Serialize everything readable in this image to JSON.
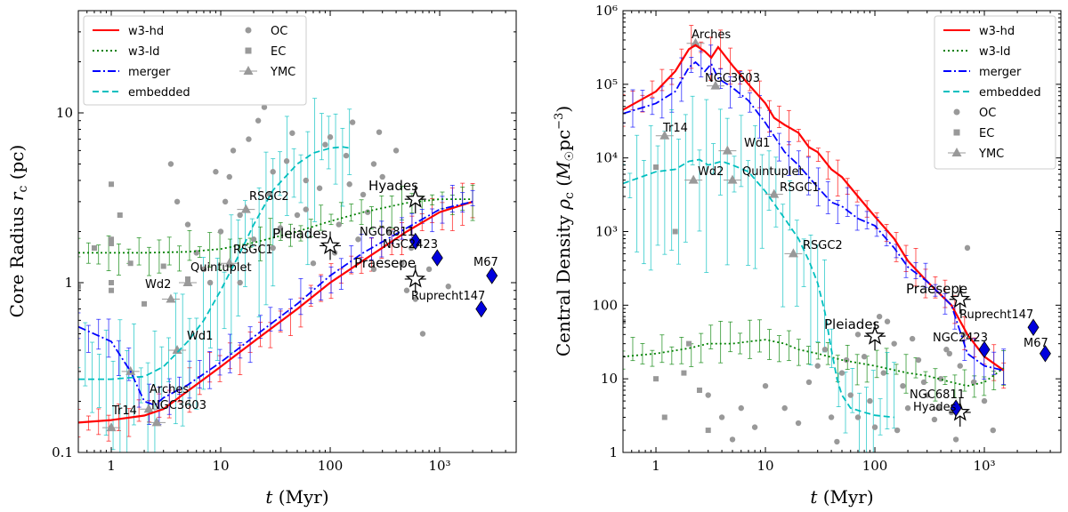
{
  "chart_data": [
    {
      "type": "line",
      "xscale": "log",
      "yscale": "log",
      "xlabel": "t (Myr)",
      "ylabel": "Core Radius r_c (pc)",
      "xlim": [
        0.5,
        5000
      ],
      "ylim": [
        0.1,
        40
      ],
      "x_ticks": [
        {
          "v": 1,
          "label": "1"
        },
        {
          "v": 10,
          "label": "10"
        },
        {
          "v": 100,
          "label": "100"
        },
        {
          "v": 1000,
          "label": "10³"
        }
      ],
      "y_ticks": [
        {
          "v": 0.1,
          "label": "0.1"
        },
        {
          "v": 1,
          "label": "1"
        },
        {
          "v": 10,
          "label": "10"
        }
      ],
      "legend": [
        {
          "name": "w3-hd",
          "kind": "line",
          "color": "#ff0000",
          "dash": "solid"
        },
        {
          "name": "w3-ld",
          "kind": "line",
          "color": "#008000",
          "dash": "dotted"
        },
        {
          "name": "merger",
          "kind": "line",
          "color": "#0000ff",
          "dash": "dashdot"
        },
        {
          "name": "embedded",
          "kind": "line",
          "color": "#00bfbf",
          "dash": "dashed"
        },
        {
          "name": "OC",
          "kind": "marker",
          "marker": "circle",
          "color": "#999999"
        },
        {
          "name": "EC",
          "kind": "marker",
          "marker": "square",
          "color": "#999999"
        },
        {
          "name": "YMC",
          "kind": "marker",
          "marker": "triangle",
          "color": "#999999"
        }
      ],
      "series": [
        {
          "name": "w3-hd",
          "color": "#ff0000",
          "dash": "solid",
          "x": [
            0.5,
            1,
            2,
            3,
            5,
            10,
            20,
            50,
            100,
            200,
            500,
            1000,
            2000
          ],
          "y": [
            0.15,
            0.155,
            0.165,
            0.18,
            0.23,
            0.32,
            0.45,
            0.7,
            1.0,
            1.35,
            2.0,
            2.6,
            3.0
          ]
        },
        {
          "name": "w3-ld",
          "color": "#008000",
          "dash": "dotted",
          "x": [
            0.5,
            1,
            2,
            5,
            10,
            20,
            50,
            100,
            200,
            500,
            1000,
            2000
          ],
          "y": [
            1.5,
            1.5,
            1.5,
            1.52,
            1.58,
            1.72,
            2.0,
            2.3,
            2.6,
            2.95,
            3.1,
            3.1
          ]
        },
        {
          "name": "merger",
          "color": "#0000ff",
          "dash": "dashdot",
          "x": [
            0.5,
            1,
            1.5,
            2,
            2.5,
            3,
            5,
            10,
            20,
            50,
            100,
            200,
            500,
            1000,
            2000
          ],
          "y": [
            0.55,
            0.45,
            0.3,
            0.2,
            0.19,
            0.21,
            0.25,
            0.34,
            0.48,
            0.75,
            1.1,
            1.5,
            2.1,
            2.7,
            3.0
          ]
        },
        {
          "name": "embedded",
          "color": "#00bfbf",
          "dash": "dashed",
          "x": [
            0.5,
            1,
            2,
            3,
            5,
            7,
            10,
            15,
            20,
            30,
            50,
            70,
            100,
            130,
            150
          ],
          "y": [
            0.27,
            0.27,
            0.28,
            0.32,
            0.45,
            0.6,
            0.9,
            1.5,
            2.2,
            3.5,
            5.0,
            5.8,
            6.2,
            6.3,
            6.2
          ]
        }
      ],
      "points_OC": [
        [
          3.5,
          5
        ],
        [
          4,
          3
        ],
        [
          5,
          2.2
        ],
        [
          6,
          1.5
        ],
        [
          7,
          1.2
        ],
        [
          8,
          1.0
        ],
        [
          9,
          4.5
        ],
        [
          10,
          2.0
        ],
        [
          11,
          3.0
        ],
        [
          12,
          4.2
        ],
        [
          13,
          6.0
        ],
        [
          15,
          2.5
        ],
        [
          18,
          7.0
        ],
        [
          20,
          1.8
        ],
        [
          22,
          9.0
        ],
        [
          25,
          10.8
        ],
        [
          28,
          3.3
        ],
        [
          30,
          1.6
        ],
        [
          35,
          2.1
        ],
        [
          40,
          5.2
        ],
        [
          45,
          7.6
        ],
        [
          50,
          2.5
        ],
        [
          60,
          4.0
        ],
        [
          70,
          1.3
        ],
        [
          80,
          3.6
        ],
        [
          90,
          6.5
        ],
        [
          100,
          7.2
        ],
        [
          110,
          1.5
        ],
        [
          120,
          2.2
        ],
        [
          140,
          5.6
        ],
        [
          160,
          8.8
        ],
        [
          180,
          1.8
        ],
        [
          200,
          3.3
        ],
        [
          220,
          2.6
        ],
        [
          250,
          1.2
        ],
        [
          280,
          7.7
        ],
        [
          300,
          4.2
        ],
        [
          350,
          2.0
        ],
        [
          400,
          6.0
        ],
        [
          450,
          1.3
        ],
        [
          500,
          0.9
        ],
        [
          550,
          1.6
        ],
        [
          600,
          0.8
        ],
        [
          700,
          0.5
        ],
        [
          800,
          1.2
        ],
        [
          1000,
          1.4
        ],
        [
          1200,
          0.95
        ],
        [
          15,
          1.0
        ],
        [
          30,
          4.5
        ],
        [
          60,
          2.7
        ],
        [
          150,
          3.8
        ],
        [
          250,
          5.0
        ]
      ],
      "points_EC": [
        [
          0.5,
          0.95
        ],
        [
          1,
          3.8
        ],
        [
          1,
          1.8
        ],
        [
          1,
          1.7
        ],
        [
          1,
          1.0
        ],
        [
          1,
          0.9
        ],
        [
          1.5,
          1.3
        ],
        [
          2,
          0.75
        ],
        [
          3,
          1.25
        ],
        [
          5,
          1.05
        ],
        [
          0.7,
          1.6
        ],
        [
          1.2,
          2.5
        ]
      ],
      "points_YMC": [
        {
          "x": 1,
          "y": 0.14,
          "label": "Tr14"
        },
        {
          "x": 2.2,
          "y": 0.18,
          "label": "Arches"
        },
        {
          "x": 2.6,
          "y": 0.15,
          "label": "NGC3603"
        },
        {
          "x": 1.5,
          "y": 0.3,
          "label": ""
        },
        {
          "x": 4,
          "y": 0.4,
          "label": "Wd1"
        },
        {
          "x": 3.5,
          "y": 0.8,
          "label": "Wd2"
        },
        {
          "x": 5,
          "y": 1.0,
          "label": "Quintuplet"
        },
        {
          "x": 12,
          "y": 1.3,
          "label": "RSGC1"
        },
        {
          "x": 17,
          "y": 2.7,
          "label": "RSGC2"
        }
      ],
      "stars": [
        {
          "x": 100,
          "y": 1.65,
          "label": "Pleiades"
        },
        {
          "x": 600,
          "y": 3.1,
          "label": "Hyades"
        },
        {
          "x": 600,
          "y": 1.05,
          "label": "Praesepe"
        }
      ],
      "diamonds": [
        {
          "x": 600,
          "y": 1.75,
          "label": "NGC2423"
        },
        {
          "x": 950,
          "y": 1.4,
          "label": "NGC6811"
        },
        {
          "x": 3000,
          "y": 1.1,
          "label": "M67"
        },
        {
          "x": 2400,
          "y": 0.7,
          "label": "Ruprecht147"
        }
      ]
    },
    {
      "type": "line",
      "xscale": "log",
      "yscale": "log",
      "xlabel": "t (Myr)",
      "ylabel": "Central Density ρ_c (M☉ pc⁻³)",
      "xlim": [
        0.5,
        5000
      ],
      "ylim": [
        1,
        1000000
      ],
      "x_ticks": [
        {
          "v": 1,
          "label": "1"
        },
        {
          "v": 10,
          "label": "10"
        },
        {
          "v": 100,
          "label": "100"
        },
        {
          "v": 1000,
          "label": "10³"
        }
      ],
      "y_ticks": [
        {
          "v": 1,
          "label": "1"
        },
        {
          "v": 10,
          "label": "10"
        },
        {
          "v": 100,
          "label": "100"
        },
        {
          "v": 1000,
          "label": "10³"
        },
        {
          "v": 10000,
          "label": "10⁴"
        },
        {
          "v": 100000,
          "label": "10⁵"
        },
        {
          "v": 1000000,
          "label": "10⁶"
        }
      ],
      "legend": [
        {
          "name": "w3-hd",
          "kind": "line",
          "color": "#ff0000",
          "dash": "solid"
        },
        {
          "name": "w3-ld",
          "kind": "line",
          "color": "#008000",
          "dash": "dotted"
        },
        {
          "name": "merger",
          "kind": "line",
          "color": "#0000ff",
          "dash": "dashdot"
        },
        {
          "name": "embedded",
          "kind": "line",
          "color": "#00bfbf",
          "dash": "dashed"
        },
        {
          "name": "OC",
          "kind": "marker",
          "marker": "circle",
          "color": "#999999"
        },
        {
          "name": "EC",
          "kind": "marker",
          "marker": "square",
          "color": "#999999"
        },
        {
          "name": "YMC",
          "kind": "marker",
          "marker": "triangle",
          "color": "#999999"
        }
      ],
      "series": [
        {
          "name": "w3-hd",
          "color": "#ff0000",
          "dash": "solid",
          "x": [
            0.5,
            1,
            1.5,
            2,
            2.3,
            2.8,
            3.2,
            3.7,
            5,
            7,
            10,
            12,
            15,
            20,
            25,
            30,
            40,
            50,
            70,
            100,
            150,
            200,
            300,
            500,
            700,
            1000,
            1500
          ],
          "y": [
            45000,
            80000,
            150000,
            300000,
            340000,
            280000,
            230000,
            320000,
            180000,
            100000,
            55000,
            35000,
            28000,
            22000,
            14000,
            12000,
            7000,
            5500,
            3000,
            1600,
            800,
            400,
            210,
            100,
            40,
            20,
            13
          ]
        },
        {
          "name": "w3-ld",
          "color": "#008000",
          "dash": "dotted",
          "x": [
            0.5,
            1,
            2,
            3,
            5,
            7,
            10,
            15,
            20,
            30,
            50,
            100,
            200,
            300,
            500,
            700,
            1000,
            1500
          ],
          "y": [
            20,
            22,
            26,
            30,
            30,
            32,
            34,
            30,
            25,
            22,
            18,
            15,
            12,
            11,
            9,
            8,
            9,
            14
          ]
        },
        {
          "name": "merger",
          "color": "#0000ff",
          "dash": "dashdot",
          "x": [
            0.5,
            1,
            1.5,
            2,
            2.3,
            2.8,
            3.2,
            3.7,
            5,
            7,
            10,
            15,
            20,
            30,
            40,
            50,
            70,
            100,
            150,
            200,
            300,
            500,
            700,
            1000,
            1500
          ],
          "y": [
            40000,
            55000,
            80000,
            170000,
            200000,
            150000,
            190000,
            120000,
            90000,
            60000,
            30000,
            12000,
            8000,
            4000,
            2500,
            2200,
            1500,
            1200,
            600,
            330,
            210,
            100,
            22,
            15,
            13
          ]
        },
        {
          "name": "embedded",
          "color": "#00bfbf",
          "dash": "dashed",
          "x": [
            0.5,
            1,
            1.5,
            2,
            2.5,
            3,
            4,
            5,
            7,
            10,
            15,
            20,
            25,
            30,
            35,
            40,
            45,
            50,
            60,
            80,
            100,
            150
          ],
          "y": [
            4500,
            6500,
            7000,
            9000,
            9500,
            8000,
            9000,
            8000,
            6500,
            3500,
            1500,
            800,
            400,
            200,
            80,
            25,
            10,
            6,
            4,
            3.5,
            3.2,
            3.0
          ]
        }
      ],
      "points_OC": [
        [
          3,
          6
        ],
        [
          4,
          3
        ],
        [
          5,
          1.5
        ],
        [
          6,
          4
        ],
        [
          8,
          2.2
        ],
        [
          10,
          8
        ],
        [
          15,
          4
        ],
        [
          20,
          2.5
        ],
        [
          25,
          9
        ],
        [
          30,
          15
        ],
        [
          35,
          25
        ],
        [
          40,
          3
        ],
        [
          50,
          12
        ],
        [
          60,
          6
        ],
        [
          70,
          40
        ],
        [
          80,
          20
        ],
        [
          90,
          5
        ],
        [
          100,
          2.2
        ],
        [
          110,
          70
        ],
        [
          120,
          12
        ],
        [
          150,
          30
        ],
        [
          180,
          8
        ],
        [
          200,
          4
        ],
        [
          250,
          18
        ],
        [
          300,
          6
        ],
        [
          350,
          2.8
        ],
        [
          400,
          10
        ],
        [
          450,
          25
        ],
        [
          500,
          3.5
        ],
        [
          550,
          1.5
        ],
        [
          600,
          15
        ],
        [
          650,
          40
        ],
        [
          700,
          600
        ],
        [
          800,
          9
        ],
        [
          1000,
          5
        ],
        [
          1200,
          2
        ],
        [
          45,
          1.4
        ],
        [
          55,
          18
        ],
        [
          130,
          60
        ],
        [
          220,
          35
        ],
        [
          280,
          9
        ],
        [
          380,
          4
        ],
        [
          480,
          22
        ],
        [
          160,
          2
        ],
        [
          70,
          3
        ]
      ],
      "points_EC": [
        [
          0.5,
          60
        ],
        [
          1,
          7500
        ],
        [
          1.5,
          1000
        ],
        [
          2,
          30
        ],
        [
          1,
          10
        ],
        [
          1.2,
          3
        ],
        [
          1.8,
          12
        ],
        [
          2.5,
          7
        ],
        [
          3,
          2
        ]
      ],
      "points_YMC": [
        {
          "x": 2.3,
          "y": 360000,
          "label": "Arches"
        },
        {
          "x": 3.5,
          "y": 95000,
          "label": "NGC3603"
        },
        {
          "x": 1.2,
          "y": 20000,
          "label": "Tr14"
        },
        {
          "x": 4.5,
          "y": 12500,
          "label": "Wd1"
        },
        {
          "x": 2.2,
          "y": 5000,
          "label": "Wd2"
        },
        {
          "x": 5,
          "y": 5000,
          "label": "Quintuplet"
        },
        {
          "x": 12,
          "y": 3200,
          "label": "RSGC1"
        },
        {
          "x": 18,
          "y": 500,
          "label": "RSGC2"
        }
      ],
      "stars": [
        {
          "x": 600,
          "y": 120,
          "label": "Praesepe"
        },
        {
          "x": 100,
          "y": 38,
          "label": "Pleiades"
        },
        {
          "x": 600,
          "y": 3.5,
          "label": "Hyades"
        }
      ],
      "diamonds": [
        {
          "x": 1000,
          "y": 25,
          "label": "NGC2423"
        },
        {
          "x": 2800,
          "y": 50,
          "label": "Ruprecht147"
        },
        {
          "x": 3600,
          "y": 22,
          "label": "M67"
        },
        {
          "x": 550,
          "y": 4,
          "label": "NGC6811"
        }
      ]
    }
  ]
}
